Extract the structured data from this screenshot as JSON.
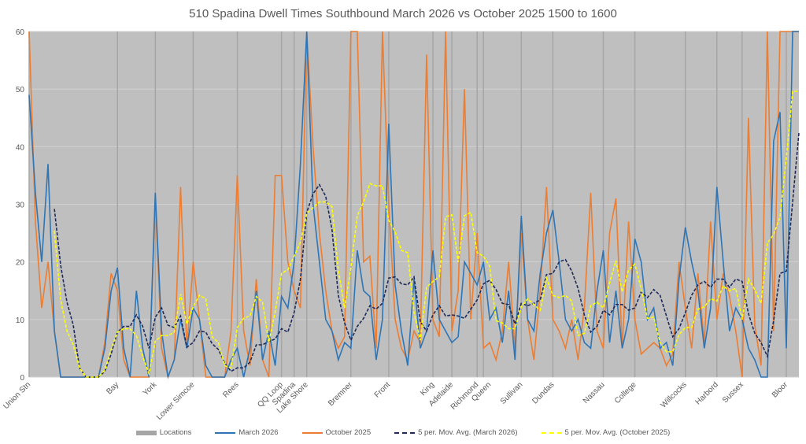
{
  "chart_data": {
    "type": "line",
    "title": "510 Spadina Dwell Times Southbound March 2026 vs October 2025 1500 to 1600",
    "xlabel": "",
    "ylabel": "",
    "ylim": [
      0,
      60
    ],
    "yticks": [
      0,
      10,
      20,
      30,
      40,
      50,
      60
    ],
    "grid": true,
    "legend_position": "bottom",
    "moving_average_period": 5,
    "point_count": 123,
    "locations": [
      {
        "name": "Union Stn",
        "index": 0
      },
      {
        "name": "Bay",
        "index": 14
      },
      {
        "name": "York",
        "index": 20
      },
      {
        "name": "Lower Simcoe",
        "index": 26
      },
      {
        "name": "Rees",
        "index": 33
      },
      {
        "name": "QQ Loop",
        "index": 40
      },
      {
        "name": "Spadina",
        "index": 42
      },
      {
        "name": "Lake Shore",
        "index": 44
      },
      {
        "name": "Bremner",
        "index": 51
      },
      {
        "name": "Front",
        "index": 57
      },
      {
        "name": "King",
        "index": 64
      },
      {
        "name": "Adelaide",
        "index": 67
      },
      {
        "name": "Richmond",
        "index": 71
      },
      {
        "name": "Queen",
        "index": 72
      },
      {
        "name": "Sullivan",
        "index": 78
      },
      {
        "name": "Dundas",
        "index": 83
      },
      {
        "name": "Nassau",
        "index": 91
      },
      {
        "name": "College",
        "index": 96
      },
      {
        "name": "Willcocks",
        "index": 104
      },
      {
        "name": "Harbord",
        "index": 109
      },
      {
        "name": "Sussex",
        "index": 113
      },
      {
        "name": "Bloor",
        "index": 120
      }
    ],
    "series": [
      {
        "name": "March 2026",
        "color": "#2E75B6",
        "values": [
          49,
          32,
          20,
          37,
          8,
          0,
          0,
          0,
          0,
          0,
          0,
          0,
          5,
          15,
          19,
          5,
          0,
          15,
          5,
          0,
          32,
          8,
          0,
          3,
          10,
          5,
          12,
          10,
          2,
          0,
          0,
          0,
          3,
          5,
          0,
          5,
          15,
          3,
          8,
          2,
          14,
          12,
          20,
          37,
          60,
          30,
          20,
          10,
          8,
          3,
          6,
          5,
          22,
          15,
          14,
          3,
          10,
          44,
          16,
          8,
          2,
          17,
          5,
          8,
          22,
          10,
          8,
          6,
          7,
          20,
          18,
          16,
          20,
          10,
          12,
          6,
          15,
          3,
          28,
          10,
          8,
          18,
          25,
          29,
          20,
          10,
          8,
          10,
          6,
          5,
          15,
          22,
          6,
          15,
          5,
          10,
          24,
          20,
          10,
          12,
          5,
          6,
          2,
          17,
          26,
          20,
          15,
          5,
          12,
          33,
          20,
          8,
          12,
          10,
          5,
          3,
          0,
          0,
          41,
          46,
          5,
          60,
          60
        ]
      },
      {
        "name": "October 2025",
        "color": "#ED7D31",
        "values": [
          60,
          27,
          12,
          20,
          8,
          0,
          0,
          0,
          0,
          0,
          0,
          0,
          6,
          18,
          15,
          3,
          0,
          0,
          0,
          0,
          31,
          5,
          0,
          3,
          33,
          5,
          20,
          10,
          0,
          0,
          0,
          0,
          8,
          35,
          8,
          2,
          17,
          3,
          0,
          35,
          35,
          20,
          15,
          12,
          60,
          40,
          25,
          15,
          8,
          5,
          7,
          60,
          60,
          20,
          21,
          5,
          60,
          30,
          10,
          5,
          3,
          8,
          6,
          56,
          10,
          7,
          60,
          8,
          15,
          50,
          10,
          25,
          5,
          6,
          3,
          8,
          20,
          5,
          25,
          10,
          3,
          15,
          33,
          10,
          8,
          5,
          10,
          3,
          12,
          32,
          8,
          5,
          25,
          31,
          5,
          27,
          10,
          4,
          5,
          6,
          5,
          2,
          4,
          20,
          12,
          5,
          18,
          6,
          27,
          10,
          18,
          14,
          8,
          0,
          45,
          9,
          2,
          60,
          8,
          60,
          60,
          60,
          60
        ]
      }
    ],
    "legend": [
      {
        "label": "Locations",
        "color": "#A6A6A6",
        "style": "bar"
      },
      {
        "label": "March 2026",
        "color": "#2E75B6",
        "style": "solid"
      },
      {
        "label": "October 2025",
        "color": "#ED7D31",
        "style": "solid"
      },
      {
        "label": "5 per. Mov. Avg. (March 2026)",
        "color": "#1F2A5A",
        "style": "dashed"
      },
      {
        "label": "5 per. Mov. Avg. (October 2025)",
        "color": "#FFFF00",
        "style": "dashed"
      }
    ]
  }
}
